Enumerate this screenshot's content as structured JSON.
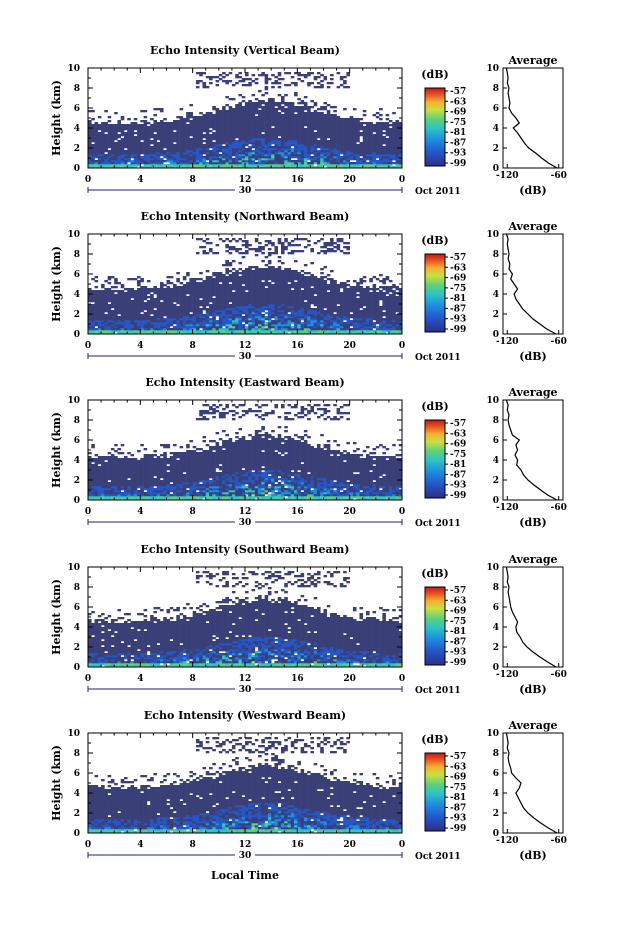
{
  "chart_data": [
    {
      "type": "heatmap",
      "title": "Echo Intensity (Vertical Beam)",
      "xlabel": "",
      "ylabel": "Height (km)",
      "xlim": [
        0,
        24
      ],
      "ylim": [
        0,
        10
      ],
      "xticks": [
        "0",
        "4",
        "8",
        "12",
        "16",
        "20",
        "0"
      ],
      "yticks": [
        "0",
        "2",
        "4",
        "6",
        "8",
        "10"
      ],
      "date_label": "30",
      "month_label": "Oct 2011",
      "colorbar": {
        "unit": "(dB)",
        "ticks": [
          "-57",
          "-63",
          "-69",
          "-75",
          "-81",
          "-87",
          "-93",
          "-99"
        ]
      },
      "profile": {
        "title": "Average",
        "xlabel": "(dB)",
        "xticks": [
          "-120",
          "-60"
        ],
        "xlim": [
          -125,
          -55
        ],
        "heights": [
          0,
          0.5,
          1,
          1.5,
          2,
          2.5,
          3,
          3.5,
          4,
          4.5,
          5,
          5.5,
          6,
          6.5,
          7,
          7.5,
          8,
          8.5,
          9,
          9.5,
          10
        ],
        "values": [
          -62,
          -72,
          -80,
          -87,
          -95,
          -100,
          -104,
          -108,
          -113,
          -106,
          -110,
          -115,
          -118,
          -117,
          -118,
          -119,
          -118,
          -120,
          -119,
          -120,
          -121
        ]
      }
    },
    {
      "type": "heatmap",
      "title": "Echo Intensity (Northward Beam)",
      "xlabel": "",
      "ylabel": "Height (km)",
      "xlim": [
        0,
        24
      ],
      "ylim": [
        0,
        10
      ],
      "xticks": [
        "0",
        "4",
        "8",
        "12",
        "16",
        "20",
        "0"
      ],
      "yticks": [
        "0",
        "2",
        "4",
        "6",
        "8",
        "10"
      ],
      "date_label": "30",
      "month_label": "Oct 2011",
      "colorbar": {
        "unit": "(dB)",
        "ticks": [
          "-57",
          "-63",
          "-69",
          "-75",
          "-81",
          "-87",
          "-93",
          "-99"
        ]
      },
      "profile": {
        "title": "Average",
        "xlabel": "(dB)",
        "xticks": [
          "-120",
          "-60"
        ],
        "xlim": [
          -125,
          -55
        ],
        "heights": [
          0,
          0.5,
          1,
          1.5,
          2,
          2.5,
          3,
          3.5,
          4,
          4.5,
          5,
          5.5,
          6,
          6.5,
          7,
          7.5,
          8,
          8.5,
          9,
          9.5,
          10
        ],
        "values": [
          -63,
          -74,
          -82,
          -90,
          -96,
          -102,
          -106,
          -110,
          -112,
          -108,
          -112,
          -116,
          -114,
          -118,
          -117,
          -119,
          -118,
          -119,
          -120,
          -119,
          -121
        ]
      }
    },
    {
      "type": "heatmap",
      "title": "Echo Intensity (Eastward Beam)",
      "xlabel": "",
      "ylabel": "Height (km)",
      "xlim": [
        0,
        24
      ],
      "ylim": [
        0,
        10
      ],
      "xticks": [
        "0",
        "4",
        "8",
        "12",
        "16",
        "20",
        "0"
      ],
      "yticks": [
        "0",
        "2",
        "4",
        "6",
        "8",
        "10"
      ],
      "date_label": "30",
      "month_label": "Oct 2011",
      "colorbar": {
        "unit": "(dB)",
        "ticks": [
          "-57",
          "-63",
          "-69",
          "-75",
          "-81",
          "-87",
          "-93",
          "-99"
        ]
      },
      "profile": {
        "title": "Average",
        "xlabel": "(dB)",
        "xticks": [
          "-120",
          "-60"
        ],
        "xlim": [
          -125,
          -55
        ],
        "heights": [
          0,
          0.5,
          1,
          1.5,
          2,
          2.5,
          3,
          3.5,
          4,
          4.5,
          5,
          5.5,
          6,
          6.5,
          7,
          7.5,
          8,
          8.5,
          9,
          9.5,
          10
        ],
        "values": [
          -62,
          -73,
          -81,
          -89,
          -96,
          -101,
          -104,
          -109,
          -108,
          -111,
          -108,
          -110,
          -106,
          -114,
          -116,
          -118,
          -119,
          -118,
          -120,
          -119,
          -121
        ]
      }
    },
    {
      "type": "heatmap",
      "title": "Echo Intensity (Southward Beam)",
      "xlabel": "",
      "ylabel": "Height (km)",
      "xlim": [
        0,
        24
      ],
      "ylim": [
        0,
        10
      ],
      "xticks": [
        "0",
        "4",
        "8",
        "12",
        "16",
        "20",
        "0"
      ],
      "yticks": [
        "0",
        "2",
        "4",
        "6",
        "8",
        "10"
      ],
      "date_label": "30",
      "month_label": "Oct 2011",
      "colorbar": {
        "unit": "(dB)",
        "ticks": [
          "-57",
          "-63",
          "-69",
          "-75",
          "-81",
          "-87",
          "-93",
          "-99"
        ]
      },
      "profile": {
        "title": "Average",
        "xlabel": "(dB)",
        "xticks": [
          "-120",
          "-60"
        ],
        "xlim": [
          -125,
          -55
        ],
        "heights": [
          0,
          0.5,
          1,
          1.5,
          2,
          2.5,
          3,
          3.5,
          4,
          4.5,
          5,
          5.5,
          6,
          6.5,
          7,
          7.5,
          8,
          8.5,
          9,
          9.5,
          10
        ],
        "values": [
          -63,
          -73,
          -82,
          -90,
          -97,
          -102,
          -105,
          -109,
          -110,
          -108,
          -111,
          -114,
          -116,
          -117,
          -118,
          -119,
          -118,
          -120,
          -119,
          -120,
          -121
        ]
      }
    },
    {
      "type": "heatmap",
      "title": "Echo Intensity (Westward Beam)",
      "xlabel": "Local Time",
      "ylabel": "Height (km)",
      "xlim": [
        0,
        24
      ],
      "ylim": [
        0,
        10
      ],
      "xticks": [
        "0",
        "4",
        "8",
        "12",
        "16",
        "20",
        "0"
      ],
      "yticks": [
        "0",
        "2",
        "4",
        "6",
        "8",
        "10"
      ],
      "date_label": "30",
      "month_label": "Oct 2011",
      "colorbar": {
        "unit": "(dB)",
        "ticks": [
          "-57",
          "-63",
          "-69",
          "-75",
          "-81",
          "-87",
          "-93",
          "-99"
        ]
      },
      "profile": {
        "title": "Average",
        "xlabel": "(dB)",
        "xticks": [
          "-120",
          "-60"
        ],
        "xlim": [
          -125,
          -55
        ],
        "heights": [
          0,
          0.5,
          1,
          1.5,
          2,
          2.5,
          3,
          3.5,
          4,
          4.5,
          5,
          5.5,
          6,
          6.5,
          7,
          7.5,
          8,
          8.5,
          9,
          9.5,
          10
        ],
        "values": [
          -62,
          -72,
          -81,
          -89,
          -96,
          -101,
          -104,
          -107,
          -110,
          -106,
          -104,
          -110,
          -115,
          -116,
          -118,
          -119,
          -118,
          -120,
          -119,
          -120,
          -121
        ]
      }
    }
  ],
  "colors": {
    "background_echo": "#3a3f78",
    "colormap": [
      "#2b2f87",
      "#2457c8",
      "#1d8ee0",
      "#2cc4c8",
      "#5fd07a",
      "#c8e040",
      "#f5b030",
      "#e85020",
      "#c01818"
    ]
  }
}
